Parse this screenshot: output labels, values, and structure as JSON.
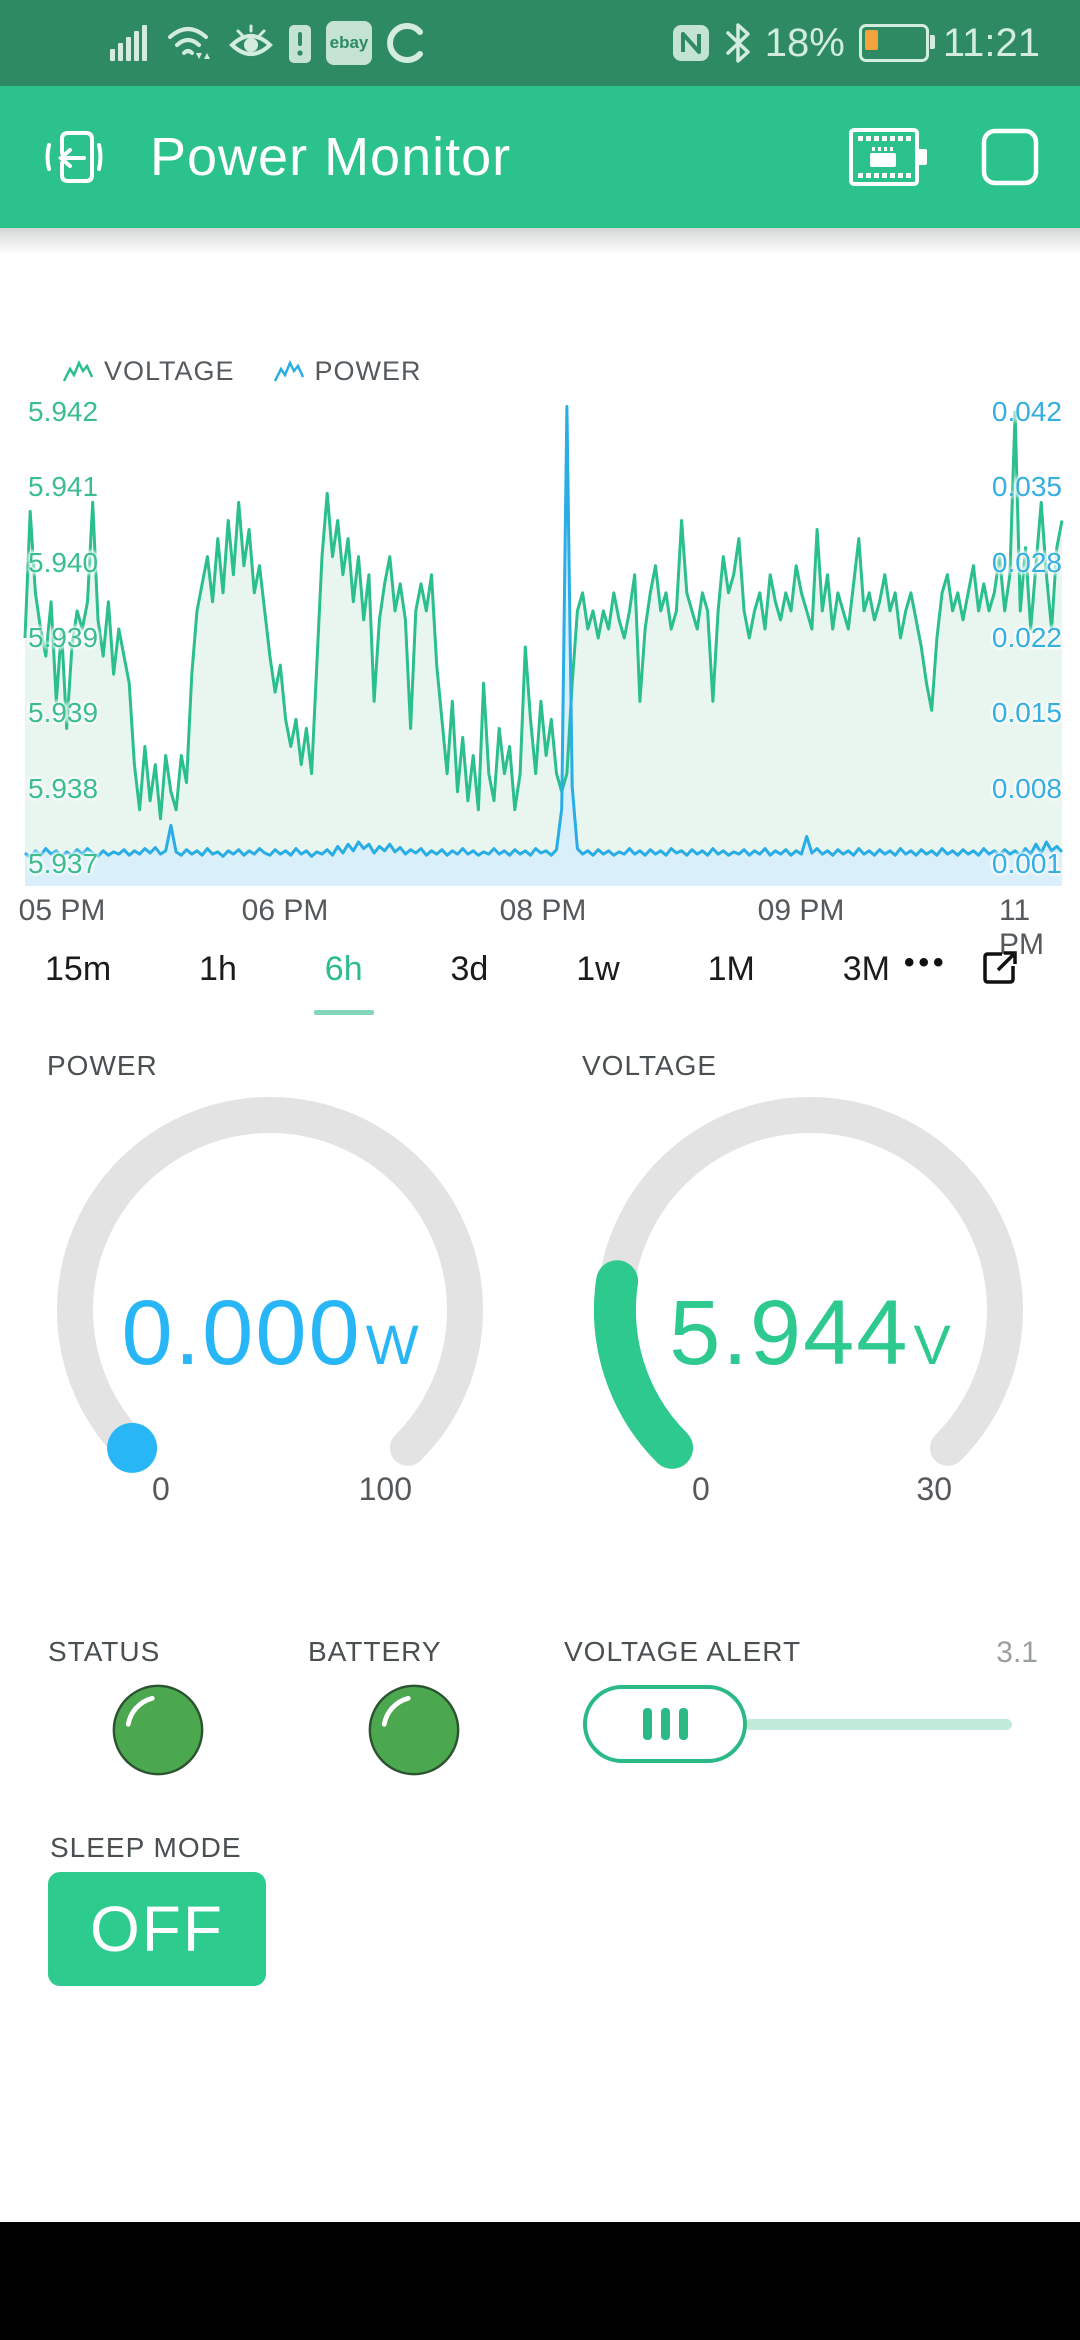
{
  "status_bar": {
    "time": "11:21",
    "battery_percent": "18%",
    "left_icons": [
      "signal-icon",
      "wifi-icon",
      "eye-comfort-icon",
      "battery-alert-icon",
      "ebay-icon",
      "sync-icon"
    ],
    "ebay_label": "ebay",
    "alert_mark": "!",
    "right_icons": [
      "nfc-icon",
      "bluetooth-icon",
      "battery-icon"
    ]
  },
  "app_bar": {
    "title": "Power Monitor",
    "icons": [
      "exit-project-icon",
      "device-board-icon",
      "stop-square-icon"
    ]
  },
  "chart_data": {
    "type": "line",
    "title": "",
    "legend": [
      {
        "name": "VOLTAGE",
        "color": "#2abf8c",
        "axis": "left"
      },
      {
        "name": "POWER",
        "color": "#29ade4",
        "axis": "right"
      }
    ],
    "x_tick_labels": [
      "05 PM",
      "06 PM",
      "08 PM",
      "09 PM",
      "11 PM"
    ],
    "left_axis": {
      "min": 5.937,
      "max": 5.942,
      "tick_labels": [
        "5.942",
        "5.941",
        "5.940",
        "5.939",
        "5.939",
        "5.938",
        "5.937"
      ]
    },
    "right_axis": {
      "min": 0.001,
      "max": 0.042,
      "tick_labels": [
        "0.042",
        "0.035",
        "0.028",
        "0.022",
        "0.015",
        "0.008",
        "0.001"
      ]
    },
    "grid": false,
    "series": [
      {
        "name": "VOLTAGE",
        "color": "#2abf8c",
        "fill": "#e9f6f0",
        "axis": "left",
        "values": [
          5.9395,
          5.9409,
          5.94,
          5.9396,
          5.9393,
          5.9399,
          5.9388,
          5.9396,
          5.9385,
          5.9394,
          5.9398,
          5.9396,
          5.9399,
          5.941,
          5.9397,
          5.9393,
          5.9399,
          5.9391,
          5.9396,
          5.9393,
          5.939,
          5.9381,
          5.9376,
          5.9383,
          5.9377,
          5.9381,
          5.9375,
          5.9382,
          5.9378,
          5.9376,
          5.9382,
          5.9379,
          5.9391,
          5.9398,
          5.9401,
          5.9404,
          5.9399,
          5.9406,
          5.94,
          5.9408,
          5.9402,
          5.941,
          5.9403,
          5.9407,
          5.94,
          5.9403,
          5.9398,
          5.9393,
          5.9389,
          5.9392,
          5.9386,
          5.9383,
          5.9386,
          5.9381,
          5.9385,
          5.938,
          5.9392,
          5.9404,
          5.9411,
          5.9404,
          5.9408,
          5.9402,
          5.9406,
          5.9399,
          5.9404,
          5.9397,
          5.9402,
          5.9388,
          5.9397,
          5.9401,
          5.9404,
          5.9398,
          5.9401,
          5.9397,
          5.9385,
          5.9398,
          5.9401,
          5.9398,
          5.9402,
          5.9392,
          5.9386,
          5.938,
          5.9388,
          5.9378,
          5.9384,
          5.9377,
          5.9382,
          5.9376,
          5.939,
          5.938,
          5.9377,
          5.9385,
          5.938,
          5.9383,
          5.9376,
          5.938,
          5.9394,
          5.9386,
          5.938,
          5.9388,
          5.9382,
          5.9386,
          5.938,
          5.9378,
          5.938,
          5.939,
          5.9398,
          5.94,
          5.9396,
          5.9398,
          5.9395,
          5.9398,
          5.9396,
          5.94,
          5.9397,
          5.9395,
          5.9398,
          5.9402,
          5.9388,
          5.9396,
          5.94,
          5.9403,
          5.9398,
          5.94,
          5.9396,
          5.9398,
          5.9408,
          5.94,
          5.9398,
          5.9396,
          5.94,
          5.9398,
          5.9388,
          5.9398,
          5.9404,
          5.94,
          5.9402,
          5.9406,
          5.9398,
          5.9395,
          5.9398,
          5.94,
          5.9396,
          5.9402,
          5.9399,
          5.9397,
          5.94,
          5.9398,
          5.9403,
          5.94,
          5.9398,
          5.9396,
          5.9407,
          5.9398,
          5.9402,
          5.9396,
          5.94,
          5.9398,
          5.9396,
          5.9401,
          5.9406,
          5.9398,
          5.94,
          5.9397,
          5.9399,
          5.9402,
          5.9398,
          5.94,
          5.9395,
          5.9398,
          5.94,
          5.9397,
          5.9394,
          5.939,
          5.9387,
          5.9395,
          5.94,
          5.9402,
          5.9398,
          5.94,
          5.9397,
          5.94,
          5.9403,
          5.9398,
          5.9401,
          5.9398,
          5.94,
          5.9404,
          5.9398,
          5.9402,
          5.942,
          5.9398,
          5.9405,
          5.9396,
          5.9403,
          5.941,
          5.9402,
          5.9396,
          5.9405,
          5.9408
        ]
      },
      {
        "name": "POWER",
        "color": "#29ade4",
        "fill": "#d9effa",
        "axis": "right",
        "values": [
          0.002,
          0.0016,
          0.0022,
          0.0018,
          0.0024,
          0.0019,
          0.0022,
          0.0017,
          0.0021,
          0.0018,
          0.0023,
          0.0019,
          0.0024,
          0.002,
          0.0017,
          0.0022,
          0.0018,
          0.0021,
          0.0019,
          0.0023,
          0.0018,
          0.0022,
          0.0019,
          0.0024,
          0.002,
          0.0025,
          0.0019,
          0.0022,
          0.0045,
          0.0021,
          0.0018,
          0.0023,
          0.0019,
          0.0022,
          0.0018,
          0.0024,
          0.0019,
          0.0021,
          0.0017,
          0.0022,
          0.0019,
          0.0023,
          0.0018,
          0.0022,
          0.0019,
          0.0024,
          0.002,
          0.0018,
          0.0023,
          0.0019,
          0.0022,
          0.0018,
          0.0024,
          0.0019,
          0.0022,
          0.0017,
          0.0021,
          0.0019,
          0.0023,
          0.0018,
          0.0026,
          0.002,
          0.0028,
          0.0022,
          0.003,
          0.0024,
          0.0028,
          0.002,
          0.0026,
          0.0022,
          0.0028,
          0.0021,
          0.0025,
          0.0019,
          0.0023,
          0.002,
          0.0024,
          0.0018,
          0.0022,
          0.0019,
          0.0023,
          0.0018,
          0.0022,
          0.0019,
          0.0024,
          0.0019,
          0.0022,
          0.0018,
          0.0021,
          0.0019,
          0.0024,
          0.0019,
          0.0022,
          0.0018,
          0.0023,
          0.0019,
          0.0022,
          0.0018,
          0.0024,
          0.002,
          0.0022,
          0.0018,
          0.0023,
          0.006,
          0.0425,
          0.008,
          0.0024,
          0.0019,
          0.0022,
          0.0018,
          0.0023,
          0.0019,
          0.0022,
          0.0018,
          0.0021,
          0.0019,
          0.0024,
          0.0019,
          0.0022,
          0.0018,
          0.0023,
          0.0019,
          0.0022,
          0.0018,
          0.0024,
          0.002,
          0.0022,
          0.0018,
          0.0023,
          0.0019,
          0.0022,
          0.0018,
          0.0024,
          0.0019,
          0.0022,
          0.0018,
          0.0021,
          0.0019,
          0.0023,
          0.0018,
          0.0022,
          0.0019,
          0.0024,
          0.0018,
          0.0022,
          0.0019,
          0.0023,
          0.0018,
          0.0022,
          0.0019,
          0.0035,
          0.002,
          0.0024,
          0.0019,
          0.0022,
          0.0018,
          0.0023,
          0.0019,
          0.0022,
          0.0018,
          0.0024,
          0.0019,
          0.0022,
          0.0018,
          0.0023,
          0.0019,
          0.0022,
          0.0018,
          0.0024,
          0.0019,
          0.0022,
          0.0018,
          0.0023,
          0.0019,
          0.0022,
          0.0018,
          0.0024,
          0.0019,
          0.0022,
          0.0018,
          0.0023,
          0.0019,
          0.0022,
          0.0018,
          0.0024,
          0.0019,
          0.0022,
          0.0018,
          0.0023,
          0.0019,
          0.0022,
          0.0018,
          0.0024,
          0.0019,
          0.0028,
          0.002,
          0.003,
          0.0022,
          0.0026,
          0.0021
        ]
      }
    ]
  },
  "range_selector": {
    "options": [
      "15m",
      "1h",
      "6h",
      "3d",
      "1w",
      "1M",
      "3M"
    ],
    "selected": "6h",
    "more_label": "•••"
  },
  "gauges": [
    {
      "label": "POWER",
      "value": "0.000",
      "unit": "W",
      "min": "0",
      "max": "100",
      "color": "#29b6f6"
    },
    {
      "label": "VOLTAGE",
      "value": "5.944",
      "unit": "V",
      "min": "0",
      "max": "30",
      "color": "#2dc98e"
    }
  ],
  "leds": [
    {
      "label": "STATUS",
      "state_color": "#4ba84f"
    },
    {
      "label": "BATTERY",
      "state_color": "#4ba84f"
    }
  ],
  "slider": {
    "label": "VOLTAGE ALERT",
    "value": "3.1"
  },
  "sleep": {
    "label": "SLEEP MODE",
    "state": "OFF"
  }
}
